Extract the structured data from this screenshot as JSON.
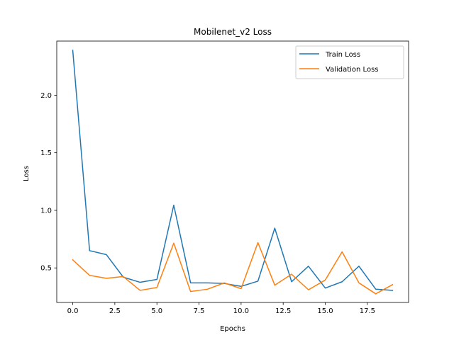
{
  "chart_data": {
    "type": "line",
    "title": "Mobilenet_v2 Loss",
    "xlabel": "Epochs",
    "ylabel": "Loss",
    "xlim": [
      -0.95,
      19.95
    ],
    "ylim": [
      0.2,
      2.47
    ],
    "x_ticks": [
      0,
      2.5,
      5,
      7.5,
      10,
      12.5,
      15,
      17.5
    ],
    "x_tick_labels": [
      "0.0",
      "2.5",
      "5.0",
      "7.5",
      "10.0",
      "12.5",
      "15.0",
      "17.5"
    ],
    "y_ticks": [
      0.5,
      1.0,
      1.5,
      2.0
    ],
    "y_tick_labels": [
      "0.5",
      "1.0",
      "1.5",
      "2.0"
    ],
    "grid": false,
    "legend_position": "top-right",
    "x": [
      0,
      1,
      2,
      3,
      4,
      5,
      6,
      7,
      8,
      9,
      10,
      11,
      12,
      13,
      14,
      15,
      16,
      17,
      18,
      19
    ],
    "series": [
      {
        "name": "Train Loss",
        "color": "#1f77b4",
        "values": [
          2.39,
          0.65,
          0.615,
          0.42,
          0.375,
          0.4,
          1.045,
          0.37,
          0.37,
          0.365,
          0.34,
          0.385,
          0.845,
          0.38,
          0.515,
          0.325,
          0.38,
          0.515,
          0.315,
          0.305
        ]
      },
      {
        "name": "Validation Loss",
        "color": "#ff7f0e",
        "values": [
          0.57,
          0.435,
          0.41,
          0.425,
          0.305,
          0.33,
          0.715,
          0.295,
          0.315,
          0.37,
          0.32,
          0.72,
          0.35,
          0.445,
          0.31,
          0.395,
          0.64,
          0.37,
          0.275,
          0.355
        ]
      }
    ]
  }
}
